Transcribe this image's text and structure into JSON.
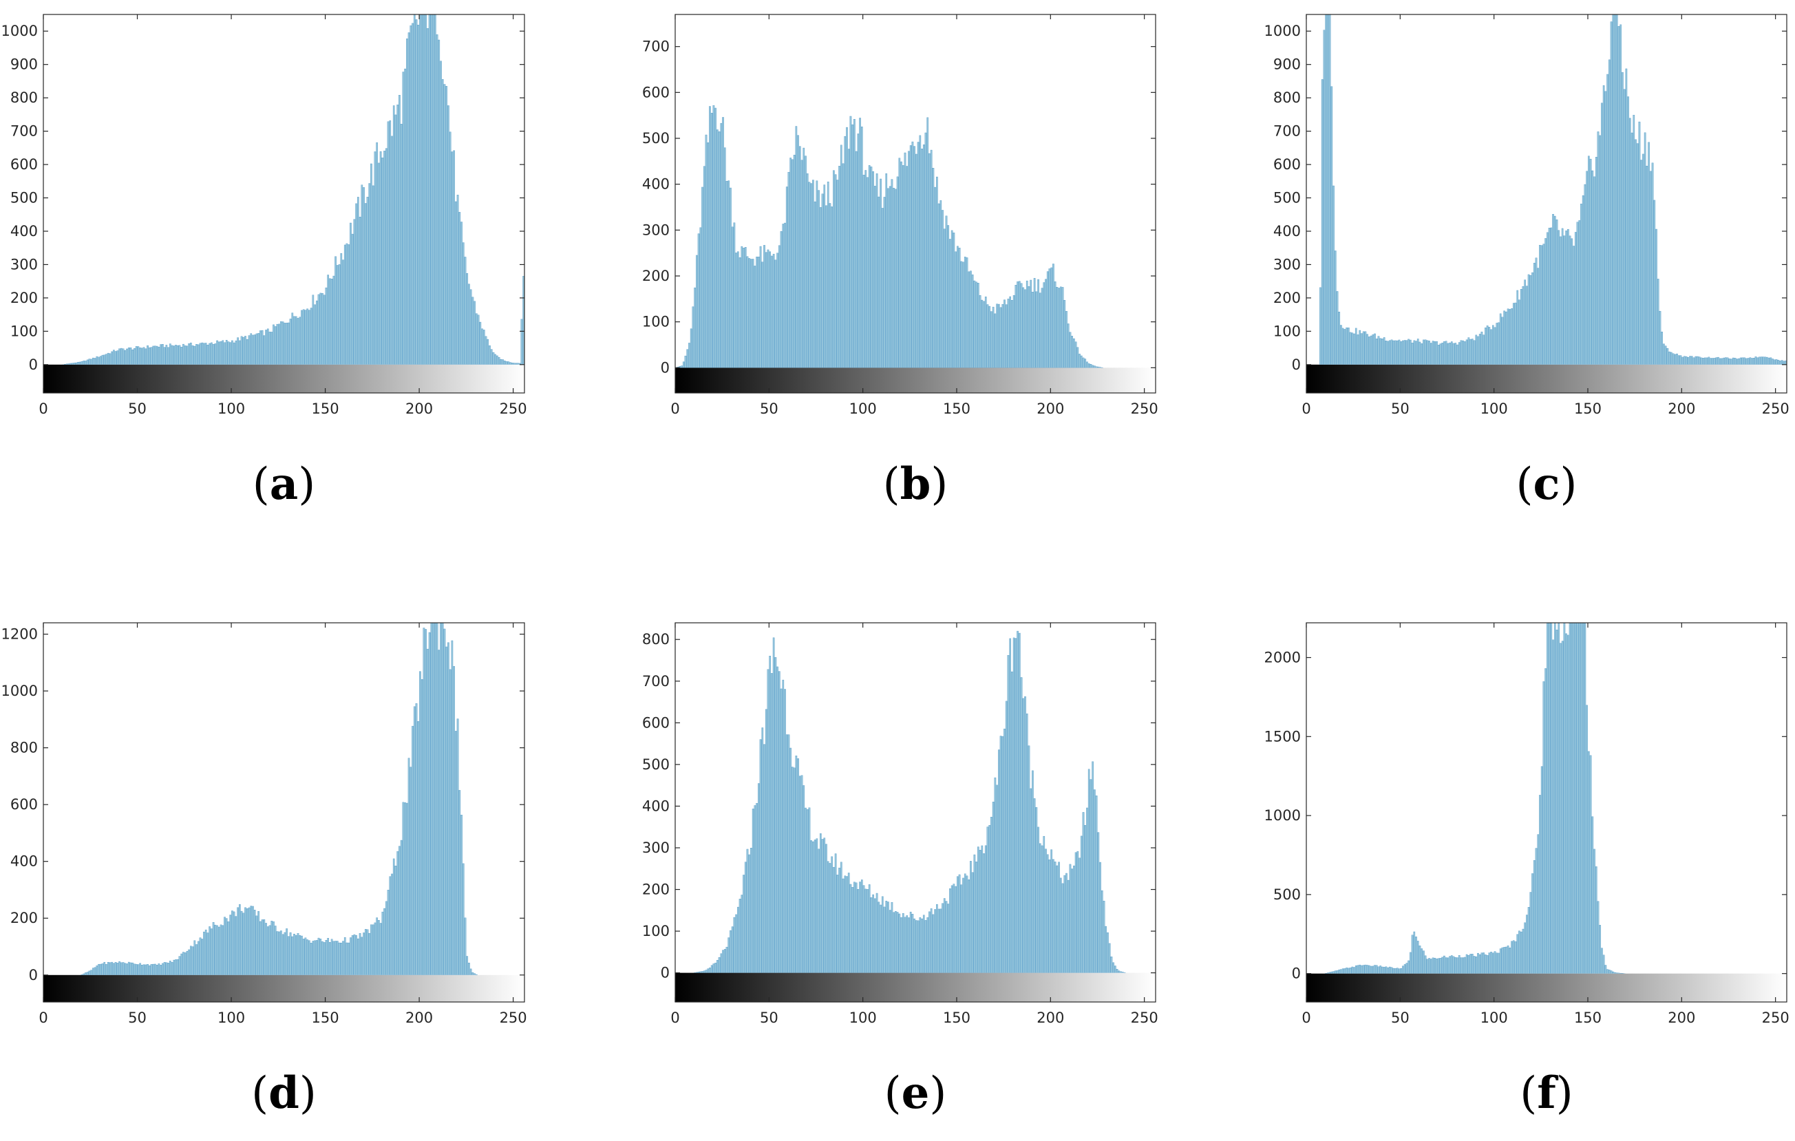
{
  "chart_data": [
    {
      "type": "bar",
      "panel_label": "a",
      "xlim": [
        0,
        256
      ],
      "ylim": [
        -85,
        1050
      ],
      "xticks": [
        0,
        50,
        100,
        150,
        200,
        250
      ],
      "yticks": [
        0,
        100,
        200,
        300,
        400,
        500,
        600,
        700,
        800,
        900,
        1000
      ],
      "colorbar": "grayscale",
      "profile": [
        [
          0,
          0
        ],
        [
          10,
          0
        ],
        [
          20,
          8
        ],
        [
          30,
          25
        ],
        [
          40,
          45
        ],
        [
          60,
          55
        ],
        [
          80,
          60
        ],
        [
          100,
          70
        ],
        [
          120,
          100
        ],
        [
          140,
          170
        ],
        [
          150,
          230
        ],
        [
          160,
          350
        ],
        [
          170,
          500
        ],
        [
          180,
          650
        ],
        [
          190,
          780
        ],
        [
          195,
          950
        ],
        [
          200,
          1050
        ],
        [
          205,
          1100
        ],
        [
          210,
          1080
        ],
        [
          215,
          800
        ],
        [
          220,
          500
        ],
        [
          225,
          280
        ],
        [
          230,
          170
        ],
        [
          235,
          90
        ],
        [
          240,
          30
        ],
        [
          245,
          12
        ],
        [
          250,
          5
        ],
        [
          254,
          4
        ],
        [
          255,
          270
        ]
      ]
    },
    {
      "type": "bar",
      "panel_label": "b",
      "xlim": [
        0,
        256
      ],
      "ylim": [
        -55,
        770
      ],
      "xticks": [
        0,
        50,
        100,
        150,
        200,
        250
      ],
      "yticks": [
        0,
        100,
        200,
        300,
        400,
        500,
        600,
        700
      ],
      "colorbar": "grayscale",
      "profile": [
        [
          0,
          0
        ],
        [
          4,
          5
        ],
        [
          8,
          60
        ],
        [
          12,
          250
        ],
        [
          16,
          450
        ],
        [
          20,
          570
        ],
        [
          24,
          560
        ],
        [
          28,
          420
        ],
        [
          33,
          260
        ],
        [
          40,
          240
        ],
        [
          50,
          245
        ],
        [
          56,
          260
        ],
        [
          60,
          380
        ],
        [
          64,
          500
        ],
        [
          68,
          470
        ],
        [
          72,
          380
        ],
        [
          80,
          370
        ],
        [
          86,
          400
        ],
        [
          90,
          470
        ],
        [
          94,
          540
        ],
        [
          98,
          510
        ],
        [
          104,
          400
        ],
        [
          110,
          380
        ],
        [
          116,
          420
        ],
        [
          122,
          440
        ],
        [
          128,
          500
        ],
        [
          134,
          540
        ],
        [
          140,
          380
        ],
        [
          146,
          300
        ],
        [
          152,
          250
        ],
        [
          158,
          200
        ],
        [
          164,
          150
        ],
        [
          170,
          125
        ],
        [
          176,
          140
        ],
        [
          182,
          170
        ],
        [
          188,
          185
        ],
        [
          195,
          180
        ],
        [
          201,
          210
        ],
        [
          206,
          175
        ],
        [
          210,
          90
        ],
        [
          215,
          35
        ],
        [
          220,
          10
        ],
        [
          224,
          3
        ],
        [
          228,
          0
        ],
        [
          256,
          0
        ]
      ]
    },
    {
      "type": "bar",
      "panel_label": "c",
      "xlim": [
        0,
        256
      ],
      "ylim": [
        -85,
        1050
      ],
      "xticks": [
        0,
        50,
        100,
        150,
        200,
        250
      ],
      "yticks": [
        0,
        100,
        200,
        300,
        400,
        500,
        600,
        700,
        800,
        900,
        1000
      ],
      "colorbar": "grayscale",
      "profile": [
        [
          0,
          0
        ],
        [
          7,
          0
        ],
        [
          8,
          500
        ],
        [
          9,
          1100
        ],
        [
          13,
          1100
        ],
        [
          14,
          700
        ],
        [
          16,
          250
        ],
        [
          18,
          130
        ],
        [
          22,
          105
        ],
        [
          30,
          95
        ],
        [
          40,
          80
        ],
        [
          50,
          72
        ],
        [
          60,
          70
        ],
        [
          70,
          65
        ],
        [
          80,
          65
        ],
        [
          90,
          80
        ],
        [
          100,
          120
        ],
        [
          110,
          180
        ],
        [
          120,
          280
        ],
        [
          128,
          370
        ],
        [
          132,
          420
        ],
        [
          136,
          390
        ],
        [
          142,
          360
        ],
        [
          146,
          430
        ],
        [
          150,
          560
        ],
        [
          155,
          650
        ],
        [
          160,
          850
        ],
        [
          163,
          1100
        ],
        [
          166,
          1080
        ],
        [
          170,
          850
        ],
        [
          174,
          700
        ],
        [
          180,
          660
        ],
        [
          184,
          640
        ],
        [
          186,
          450
        ],
        [
          188,
          200
        ],
        [
          190,
          60
        ],
        [
          195,
          35
        ],
        [
          200,
          25
        ],
        [
          210,
          22
        ],
        [
          220,
          20
        ],
        [
          230,
          18
        ],
        [
          240,
          22
        ],
        [
          245,
          25
        ],
        [
          250,
          15
        ],
        [
          256,
          10
        ]
      ]
    },
    {
      "type": "bar",
      "panel_label": "d",
      "xlim": [
        0,
        256
      ],
      "ylim": [
        -95,
        1240
      ],
      "xticks": [
        0,
        50,
        100,
        150,
        200,
        250
      ],
      "yticks": [
        0,
        200,
        400,
        600,
        800,
        1000,
        1200
      ],
      "colorbar": "grayscale",
      "profile": [
        [
          0,
          0
        ],
        [
          20,
          0
        ],
        [
          25,
          15
        ],
        [
          30,
          40
        ],
        [
          40,
          45
        ],
        [
          50,
          40
        ],
        [
          60,
          35
        ],
        [
          70,
          50
        ],
        [
          80,
          110
        ],
        [
          90,
          170
        ],
        [
          100,
          210
        ],
        [
          106,
          240
        ],
        [
          112,
          220
        ],
        [
          120,
          180
        ],
        [
          130,
          150
        ],
        [
          140,
          125
        ],
        [
          150,
          120
        ],
        [
          160,
          120
        ],
        [
          170,
          140
        ],
        [
          180,
          200
        ],
        [
          185,
          330
        ],
        [
          190,
          500
        ],
        [
          195,
          720
        ],
        [
          200,
          1000
        ],
        [
          205,
          1250
        ],
        [
          212,
          1270
        ],
        [
          216,
          1200
        ],
        [
          220,
          900
        ],
        [
          223,
          500
        ],
        [
          225,
          80
        ],
        [
          228,
          10
        ],
        [
          231,
          0
        ],
        [
          256,
          0
        ]
      ]
    },
    {
      "type": "bar",
      "panel_label": "e",
      "xlim": [
        0,
        256
      ],
      "ylim": [
        -70,
        840
      ],
      "xticks": [
        0,
        50,
        100,
        150,
        200,
        250
      ],
      "yticks": [
        0,
        100,
        200,
        300,
        400,
        500,
        600,
        700,
        800
      ],
      "colorbar": "grayscale",
      "profile": [
        [
          0,
          0
        ],
        [
          10,
          0
        ],
        [
          16,
          5
        ],
        [
          22,
          25
        ],
        [
          28,
          70
        ],
        [
          34,
          160
        ],
        [
          40,
          310
        ],
        [
          45,
          500
        ],
        [
          50,
          700
        ],
        [
          53,
          780
        ],
        [
          57,
          700
        ],
        [
          62,
          560
        ],
        [
          68,
          420
        ],
        [
          74,
          330
        ],
        [
          82,
          280
        ],
        [
          92,
          230
        ],
        [
          102,
          200
        ],
        [
          112,
          170
        ],
        [
          122,
          140
        ],
        [
          130,
          130
        ],
        [
          138,
          150
        ],
        [
          146,
          185
        ],
        [
          154,
          230
        ],
        [
          162,
          280
        ],
        [
          168,
          370
        ],
        [
          172,
          480
        ],
        [
          176,
          650
        ],
        [
          180,
          820
        ],
        [
          183,
          830
        ],
        [
          186,
          640
        ],
        [
          190,
          470
        ],
        [
          194,
          350
        ],
        [
          200,
          280
        ],
        [
          206,
          230
        ],
        [
          212,
          240
        ],
        [
          216,
          310
        ],
        [
          220,
          420
        ],
        [
          222,
          520
        ],
        [
          224,
          440
        ],
        [
          227,
          240
        ],
        [
          230,
          100
        ],
        [
          233,
          30
        ],
        [
          236,
          5
        ],
        [
          240,
          0
        ],
        [
          256,
          0
        ]
      ]
    },
    {
      "type": "bar",
      "panel_label": "f",
      "xlim": [
        0,
        256
      ],
      "ylim": [
        -180,
        2220
      ],
      "xticks": [
        0,
        50,
        100,
        150,
        200,
        250
      ],
      "yticks": [
        0,
        500,
        1000,
        1500,
        2000
      ],
      "colorbar": "grayscale",
      "profile": [
        [
          0,
          0
        ],
        [
          10,
          0
        ],
        [
          15,
          15
        ],
        [
          20,
          30
        ],
        [
          30,
          55
        ],
        [
          40,
          45
        ],
        [
          50,
          30
        ],
        [
          55,
          80
        ],
        [
          57,
          300
        ],
        [
          60,
          180
        ],
        [
          65,
          90
        ],
        [
          70,
          100
        ],
        [
          80,
          110
        ],
        [
          90,
          115
        ],
        [
          100,
          130
        ],
        [
          108,
          170
        ],
        [
          114,
          260
        ],
        [
          118,
          400
        ],
        [
          122,
          700
        ],
        [
          125,
          1200
        ],
        [
          128,
          2300
        ],
        [
          148,
          2300
        ],
        [
          151,
          1400
        ],
        [
          154,
          700
        ],
        [
          157,
          200
        ],
        [
          160,
          30
        ],
        [
          165,
          5
        ],
        [
          170,
          0
        ],
        [
          256,
          0
        ]
      ]
    }
  ]
}
